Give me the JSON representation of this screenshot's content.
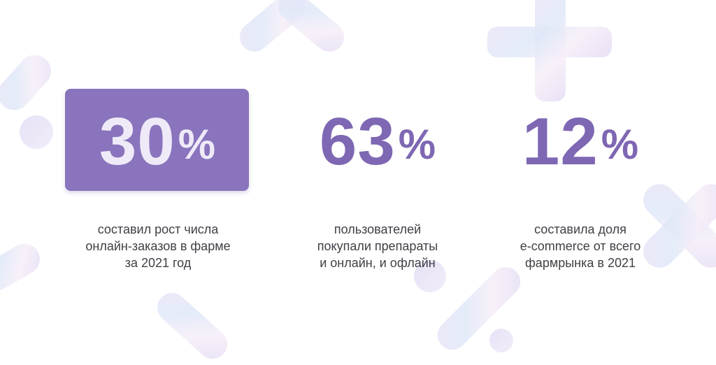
{
  "stats": [
    {
      "number": "30",
      "percent_sign": "%",
      "caption": [
        "составил рост числа",
        "онлайн-заказов в фарме",
        "за 2021 год"
      ],
      "highlighted": true
    },
    {
      "number": "63",
      "percent_sign": "%",
      "caption": [
        "пользователей",
        "покупали препараты",
        "и онлайн, и офлайн"
      ],
      "highlighted": false
    },
    {
      "number": "12",
      "percent_sign": "%",
      "caption": [
        "составила доля",
        "e-commerce от всего",
        "фармрынка в 2021"
      ],
      "highlighted": false
    }
  ],
  "colors": {
    "accent": "#8a74bd",
    "number_dark": "#7e67b3",
    "number_light": "#efeaf8",
    "caption_text": "#3f3f46",
    "background": "#ffffff"
  }
}
